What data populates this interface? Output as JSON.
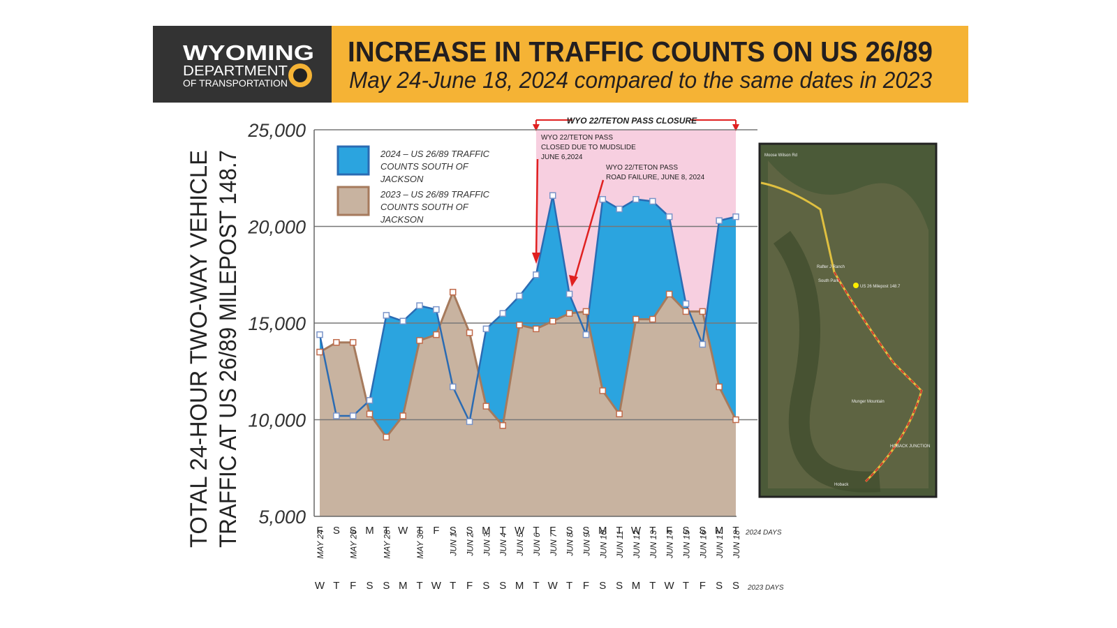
{
  "header": {
    "logo": [
      "WYOMING",
      "DEPARTMENT",
      "OF TRANSPORTATION"
    ],
    "title": "INCREASE IN TRAFFIC COUNTS ON US 26/89",
    "subtitle": "May 24-June 18, 2024 compared to the same dates in 2023"
  },
  "chart_data": {
    "type": "area",
    "y_label": [
      "TOTAL 24-HOUR TWO-WAY VEHICLE",
      "TRAFFIC AT  US 26/89 MILEPOST 148.7"
    ],
    "categories": [
      "MAY 24",
      null,
      "MAY 26",
      null,
      "MAY 28",
      null,
      "MAY 30",
      null,
      "JUN 1",
      "JUN 2",
      "JUN 3",
      "JUN 4",
      "JUN 5",
      "JUN 6",
      "JUN 7",
      "JUN 8",
      "JUN 9",
      "JUN 10",
      "JUN 11",
      "JUN 12",
      "JUN 13",
      "JUN 14",
      "JUN 15",
      "JUN 16",
      "JUN 17",
      "JUN 18"
    ],
    "days_2024": [
      "F",
      "S",
      "S",
      "M",
      "T",
      "W",
      "T",
      "F",
      "S",
      "S",
      "M",
      "T",
      "W",
      "T",
      "F",
      "S",
      "S",
      "M",
      "T",
      "W",
      "T",
      "F",
      "S",
      "S",
      "M",
      "T"
    ],
    "days_2023": [
      "W",
      "T",
      "F",
      "S",
      "S",
      "M",
      "T",
      "W",
      "T",
      "F",
      "S",
      "S",
      "M",
      "T",
      "W",
      "T",
      "F",
      "S",
      "S",
      "M",
      "T",
      "W",
      "T",
      "F",
      "S",
      "S"
    ],
    "days_2024_label": "2024 DAYS",
    "days_2023_label": "2023 DAYS",
    "series": [
      {
        "name": "2024 – US 26/89 TRAFFIC COUNTS SOUTH OF JACKSON",
        "color": "#2ba4df",
        "values": [
          14400,
          10200,
          10200,
          11000,
          15400,
          15100,
          15900,
          15700,
          11700,
          9900,
          14700,
          15500,
          16400,
          17500,
          21600,
          16500,
          14400,
          21400,
          20900,
          21400,
          21300,
          20500,
          16000,
          13900,
          20300,
          20500
        ]
      },
      {
        "name": "2023 – US 26/89 TRAFFIC COUNTS SOUTH OF JACKSON",
        "color": "#c8b3a0",
        "values": [
          13500,
          14000,
          14000,
          10300,
          9100,
          10200,
          14100,
          14400,
          16600,
          14500,
          10700,
          9700,
          14900,
          14700,
          15100,
          15500,
          15600,
          11500,
          10300,
          15200,
          15200,
          16500,
          15600,
          15600,
          11700,
          10000
        ]
      }
    ],
    "ylim": [
      5000,
      25000
    ],
    "yticks": [
      {
        "value": 5000,
        "label": "5,000"
      },
      {
        "value": 10000,
        "label": "10,000"
      },
      {
        "value": 15000,
        "label": "15,000"
      },
      {
        "value": 20000,
        "label": "20,000"
      },
      {
        "value": 25000,
        "label": "25,000"
      }
    ],
    "grid": true,
    "shaded_region": {
      "from": "JUN 6",
      "to": "JUN 18",
      "color": "#f7cfe0",
      "label": "WYO 22/TETON PASS CLOSURE"
    },
    "annotations": [
      {
        "lines": [
          "WYO 22/TETON PASS",
          "CLOSED DUE TO MUDSLIDE",
          "JUNE 6,2024"
        ]
      },
      {
        "lines": [
          "WYO 22/TETON PASS",
          "ROAD FAILURE, JUNE 8, 2024"
        ]
      }
    ]
  },
  "map": {
    "labels": [
      "Moose Wilson Rd",
      "Rafter J Ranch",
      "South Park",
      "US 26 Milepost 148.7",
      "Munger Mountain",
      "HOBACK JUNCTION",
      "Hoback"
    ]
  }
}
